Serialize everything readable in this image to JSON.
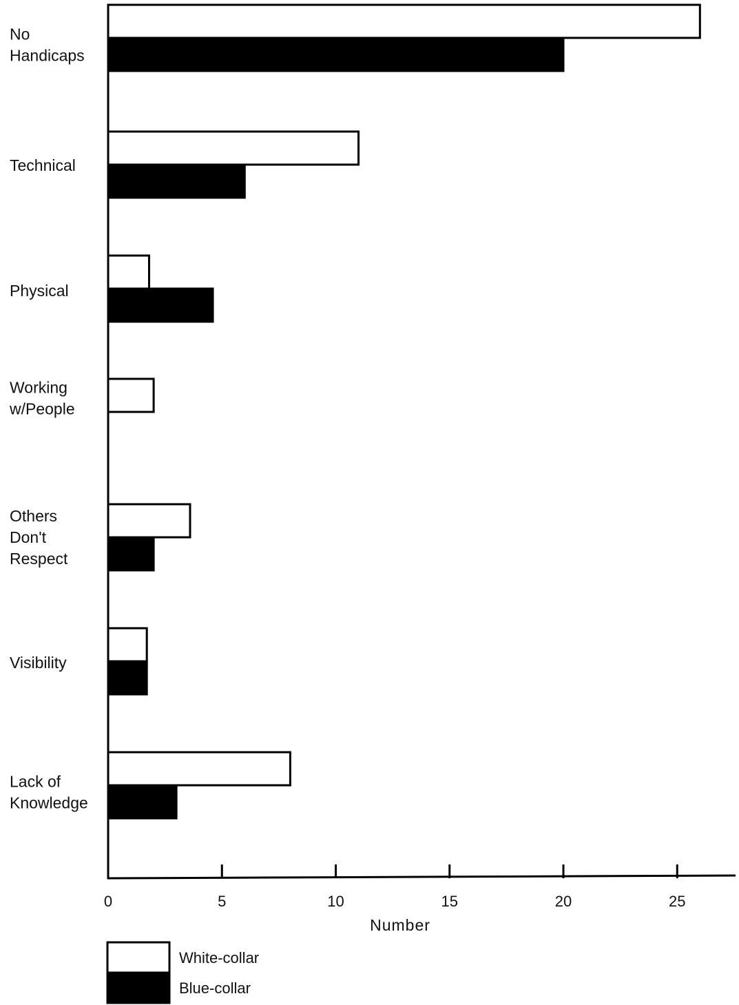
{
  "chart_data": {
    "type": "bar",
    "orientation": "horizontal",
    "categories": [
      [
        "No",
        "Handicaps"
      ],
      [
        "Technical"
      ],
      [
        "Physical"
      ],
      [
        "Working",
        "w/People"
      ],
      [
        "Others",
        "Don't",
        "Respect"
      ],
      [
        "Visibility"
      ],
      [
        "Lack of",
        "Knowledge"
      ]
    ],
    "series": [
      {
        "name": "White-collar",
        "color": "#ffffff",
        "values": [
          26,
          11,
          1.8,
          2,
          3.6,
          1.7,
          8
        ]
      },
      {
        "name": "Blue-collar",
        "color": "#000000",
        "values": [
          20,
          6,
          4.6,
          0,
          2,
          1.7,
          3
        ]
      }
    ],
    "xlabel": "Number",
    "xlim": [
      0,
      27
    ],
    "xticks": [
      0,
      5,
      10,
      15,
      20,
      25
    ],
    "grid": false,
    "legend_position": "bottom-left"
  }
}
